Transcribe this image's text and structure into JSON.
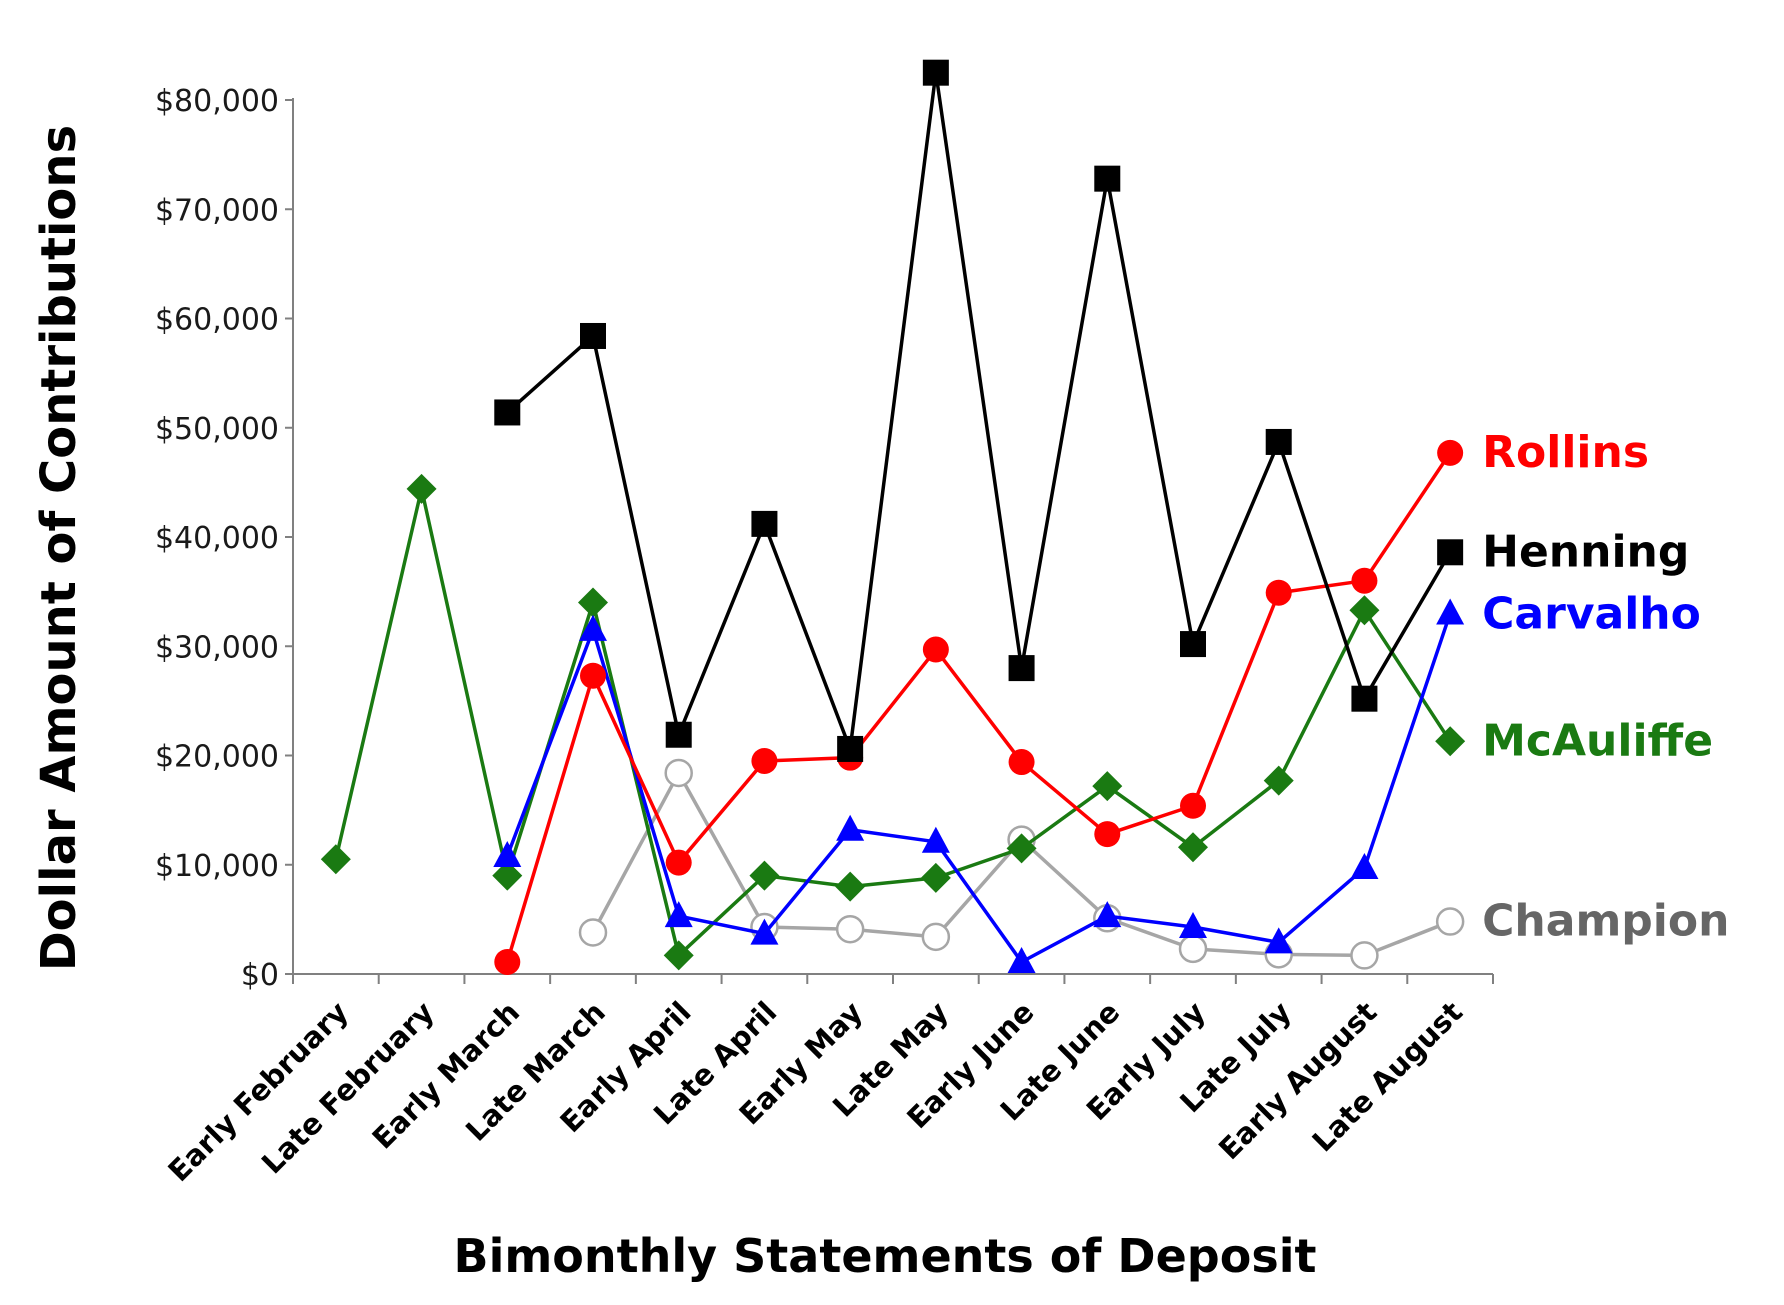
{
  "chart_data": {
    "type": "line",
    "title": "",
    "xlabel": "Bimonthly Statements of Deposit",
    "ylabel": "Dollar Amount of Contributions",
    "ylim": [
      0,
      80000
    ],
    "y_ticks": [
      0,
      10000,
      20000,
      30000,
      40000,
      50000,
      60000,
      70000,
      80000
    ],
    "y_tick_labels": [
      "$0",
      "$10,000",
      "$20,000",
      "$30,000",
      "$40,000",
      "$50,000",
      "$60,000",
      "$70,000",
      "$80,000"
    ],
    "categories": [
      "Early February",
      "Late February",
      "Early March",
      "Late March",
      "Early April",
      "Late April",
      "Early May",
      "Late May",
      "Early June",
      "Late June",
      "Early July",
      "Late July",
      "Early August",
      "Late August"
    ],
    "grid": false,
    "legend": "series labels at right end of lines",
    "series": [
      {
        "name": "Champion",
        "color": "#a6a6a6",
        "marker": "open-circle",
        "label_color": "#666666",
        "values": [
          null,
          null,
          null,
          3800,
          18400,
          4300,
          4100,
          3400,
          12300,
          5100,
          2300,
          1800,
          1700,
          4800
        ]
      },
      {
        "name": "McAuliffe",
        "color": "#1a7a12",
        "marker": "diamond",
        "label_color": "#1a7a12",
        "values": [
          10500,
          44400,
          9000,
          34000,
          1700,
          9000,
          8000,
          8800,
          11500,
          17200,
          11600,
          17700,
          33300,
          21300
        ]
      },
      {
        "name": "Carvalho",
        "color": "#0000ff",
        "marker": "triangle",
        "label_color": "#0000ff",
        "values": [
          null,
          null,
          10800,
          31500,
          5300,
          3700,
          13200,
          12100,
          1100,
          5300,
          4300,
          2900,
          9700,
          33000
        ]
      },
      {
        "name": "Rollins",
        "color": "#ff0000",
        "marker": "circle",
        "label_color": "#ff0000",
        "values": [
          null,
          null,
          1100,
          27300,
          10200,
          19500,
          19800,
          29700,
          19400,
          12800,
          15400,
          34900,
          36000,
          47700
        ]
      },
      {
        "name": "Henning",
        "color": "#000000",
        "marker": "square",
        "label_color": "#000000",
        "values": [
          null,
          null,
          51400,
          58400,
          21900,
          41200,
          20600,
          82500,
          28000,
          72800,
          30200,
          48700,
          25200,
          38600
        ]
      }
    ]
  }
}
